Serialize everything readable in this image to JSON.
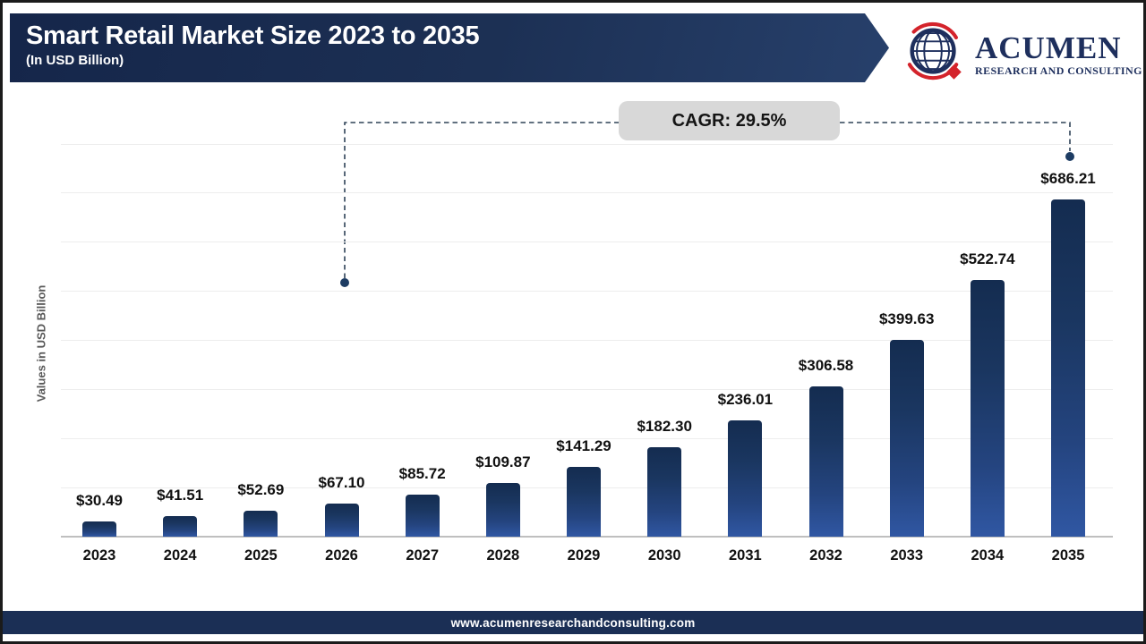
{
  "header": {
    "title": "Smart Retail Market Size 2023 to 2035",
    "subtitle": "(In USD Billion)"
  },
  "logo": {
    "brand": "ACUMEN",
    "tagline": "RESEARCH AND CONSULTING"
  },
  "cagr": {
    "label": "CAGR: 29.5%"
  },
  "chart_data": {
    "type": "bar",
    "title": "Smart Retail Market Size 2023 to 2035",
    "categories": [
      "2023",
      "2024",
      "2025",
      "2026",
      "2027",
      "2028",
      "2029",
      "2030",
      "2031",
      "2032",
      "2033",
      "2034",
      "2035"
    ],
    "values": [
      30.49,
      41.51,
      52.69,
      67.1,
      85.72,
      109.87,
      141.29,
      182.3,
      236.01,
      306.58,
      399.63,
      522.74,
      686.21
    ],
    "value_labels": [
      "$30.49",
      "$41.51",
      "$52.69",
      "$67.10",
      "$85.72",
      "$109.87",
      "$141.29",
      "$182.30",
      "$236.01",
      "$306.58",
      "$399.63",
      "$522.74",
      "$686.21"
    ],
    "xlabel": "",
    "ylabel": "Values in USD Billion",
    "ylim": [
      0,
      800
    ],
    "gridline_step": 100,
    "grid": "horizontal",
    "legend": "none",
    "annotation": {
      "text": "CAGR: 29.5%",
      "connector_targets": [
        "2026",
        "2035"
      ]
    }
  },
  "colors": {
    "header_navy": "#1c3054",
    "footer_navy": "#1b2f55",
    "bar_top": "#142c50",
    "bar_bottom": "#3057a3",
    "badge_bg": "#d8d8d8",
    "connector": "#2e4257",
    "dot": "#1d3c63",
    "logo_navy": "#1e2f5d",
    "logo_red": "#d4232b"
  },
  "footer": {
    "url": "www.acumenresearchandconsulting.com"
  }
}
